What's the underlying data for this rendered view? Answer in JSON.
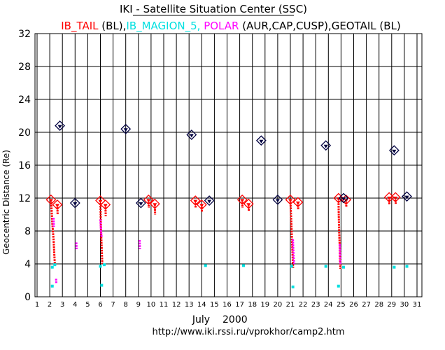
{
  "header": {
    "title": "IKI - Satellite Situation Center (SSC)",
    "subtitle_parts": [
      {
        "text": "IB_TAIL",
        "color": "#ff0000"
      },
      {
        "text": " (BL),",
        "color": "#000000"
      },
      {
        "text": "IB_MAGION_5,",
        "color": "#00e0e0"
      },
      {
        "text": " POLAR",
        "color": "#ff00ff"
      },
      {
        "text": " (AUR,CAP,CUSP),GEOTAIL (BL)",
        "color": "#000000"
      }
    ]
  },
  "footer": {
    "month": "July",
    "year": "2000",
    "url": "http://www.iki.rssi.ru/vprokhor/camp2.htm"
  },
  "colors": {
    "ib_tail": "#ff0000",
    "magion": "#00e0e0",
    "polar": "#ff00ff",
    "geotail": "#000040",
    "grid": "#000000"
  },
  "chart_data": {
    "type": "scatter",
    "title": "IKI - Satellite Situation Center (SSC)",
    "xlabel": "July   2000",
    "ylabel": "Geocentric Distance (Re)",
    "xlim": [
      1,
      31.5
    ],
    "ylim": [
      0,
      32
    ],
    "xticks": [
      1,
      2,
      3,
      4,
      5,
      6,
      7,
      8,
      9,
      10,
      11,
      12,
      13,
      14,
      15,
      16,
      17,
      18,
      19,
      20,
      21,
      22,
      23,
      24,
      25,
      26,
      27,
      28,
      29,
      30,
      31
    ],
    "yticks": [
      0,
      4,
      8,
      12,
      16,
      20,
      24,
      28,
      32
    ],
    "grid": true,
    "series": [
      {
        "name": "IB_TAIL",
        "color": "#ff0000",
        "apogee_markers": [
          [
            2.1,
            11.8
          ],
          [
            2.6,
            11.2
          ],
          [
            6.0,
            11.7
          ],
          [
            6.4,
            11.2
          ],
          [
            9.8,
            11.8
          ],
          [
            10.3,
            11.3
          ],
          [
            13.5,
            11.7
          ],
          [
            14.0,
            11.2
          ],
          [
            17.2,
            11.8
          ],
          [
            17.7,
            11.3
          ],
          [
            21.0,
            11.8
          ],
          [
            21.6,
            11.5
          ],
          [
            24.8,
            12.0
          ],
          [
            25.4,
            11.8
          ],
          [
            28.8,
            12.1
          ],
          [
            29.3,
            12.1
          ]
        ],
        "tracks": [
          [
            [
              2.1,
              11.8
            ],
            [
              2.15,
              10.5
            ],
            [
              2.2,
              9.0
            ],
            [
              2.3,
              7.0
            ],
            [
              2.35,
              5.5
            ],
            [
              2.4,
              4.0
            ]
          ],
          [
            [
              2.6,
              11.2
            ],
            [
              2.62,
              10.0
            ]
          ],
          [
            [
              6.0,
              11.7
            ],
            [
              6.02,
              10.0
            ],
            [
              6.05,
              8.0
            ],
            [
              6.1,
              6.0
            ],
            [
              6.15,
              4.0
            ]
          ],
          [
            [
              6.4,
              11.2
            ],
            [
              6.42,
              9.8
            ]
          ],
          [
            [
              9.8,
              11.8
            ],
            [
              9.82,
              10.8
            ]
          ],
          [
            [
              10.3,
              11.3
            ],
            [
              10.32,
              10.0
            ]
          ],
          [
            [
              13.5,
              11.7
            ],
            [
              13.52,
              10.8
            ]
          ],
          [
            [
              14.0,
              11.2
            ],
            [
              14.02,
              10.3
            ]
          ],
          [
            [
              17.2,
              11.8
            ],
            [
              17.22,
              10.8
            ]
          ],
          [
            [
              17.7,
              11.3
            ],
            [
              17.72,
              10.4
            ]
          ],
          [
            [
              21.0,
              11.8
            ],
            [
              21.05,
              10.0
            ],
            [
              21.1,
              8.0
            ],
            [
              21.15,
              6.0
            ],
            [
              21.2,
              4.0
            ],
            [
              21.22,
              3.5
            ]
          ],
          [
            [
              21.6,
              11.5
            ],
            [
              21.62,
              10.6
            ]
          ],
          [
            [
              24.8,
              12.0
            ],
            [
              24.82,
              10.0
            ],
            [
              24.85,
              8.0
            ],
            [
              24.9,
              6.0
            ],
            [
              24.92,
              4.5
            ],
            [
              24.95,
              3.4
            ]
          ],
          [
            [
              25.4,
              11.8
            ],
            [
              25.42,
              10.9
            ]
          ],
          [
            [
              28.8,
              12.1
            ],
            [
              28.82,
              11.2
            ]
          ],
          [
            [
              29.3,
              12.1
            ],
            [
              29.32,
              11.3
            ]
          ]
        ]
      },
      {
        "name": "IB_MAGION_5",
        "color": "#00e0e0",
        "points": [
          [
            2.2,
            3.6
          ],
          [
            2.4,
            3.9
          ],
          [
            2.2,
            1.3
          ],
          [
            6.0,
            3.7
          ],
          [
            6.1,
            1.4
          ],
          [
            6.3,
            3.9
          ],
          [
            14.3,
            3.8
          ],
          [
            17.3,
            3.8
          ],
          [
            21.1,
            3.7
          ],
          [
            21.2,
            1.2
          ],
          [
            23.8,
            3.7
          ],
          [
            24.8,
            1.3
          ],
          [
            25.2,
            3.6
          ],
          [
            29.2,
            3.6
          ],
          [
            30.2,
            3.7
          ]
        ]
      },
      {
        "name": "POLAR",
        "color": "#ff00ff",
        "tracks": [
          [
            [
              2.3,
              9.6
            ],
            [
              2.32,
              8.5
            ]
          ],
          [
            [
              2.5,
              2.2
            ],
            [
              2.52,
              1.6
            ]
          ],
          [
            [
              4.1,
              6.6
            ],
            [
              4.12,
              5.8
            ]
          ],
          [
            [
              6.0,
              9.4
            ],
            [
              6.05,
              8.0
            ],
            [
              6.1,
              7.2
            ]
          ],
          [
            [
              9.1,
              6.9
            ],
            [
              9.12,
              5.8
            ]
          ],
          [
            [
              21.2,
              7.0
            ],
            [
              21.25,
              5.0
            ],
            [
              21.3,
              4.0
            ]
          ],
          [
            [
              24.9,
              6.4
            ],
            [
              24.95,
              4.0
            ]
          ]
        ]
      },
      {
        "name": "GEOTAIL",
        "color": "#000040",
        "apogee_markers": [
          [
            2.8,
            20.8
          ],
          [
            4.0,
            11.4
          ],
          [
            8.0,
            20.4
          ],
          [
            9.2,
            11.4
          ],
          [
            13.2,
            19.7
          ],
          [
            14.6,
            11.7
          ],
          [
            18.7,
            19.0
          ],
          [
            20.0,
            11.8
          ],
          [
            23.8,
            18.4
          ],
          [
            25.2,
            12.0
          ],
          [
            29.2,
            17.8
          ],
          [
            30.2,
            12.2
          ]
        ]
      }
    ]
  }
}
